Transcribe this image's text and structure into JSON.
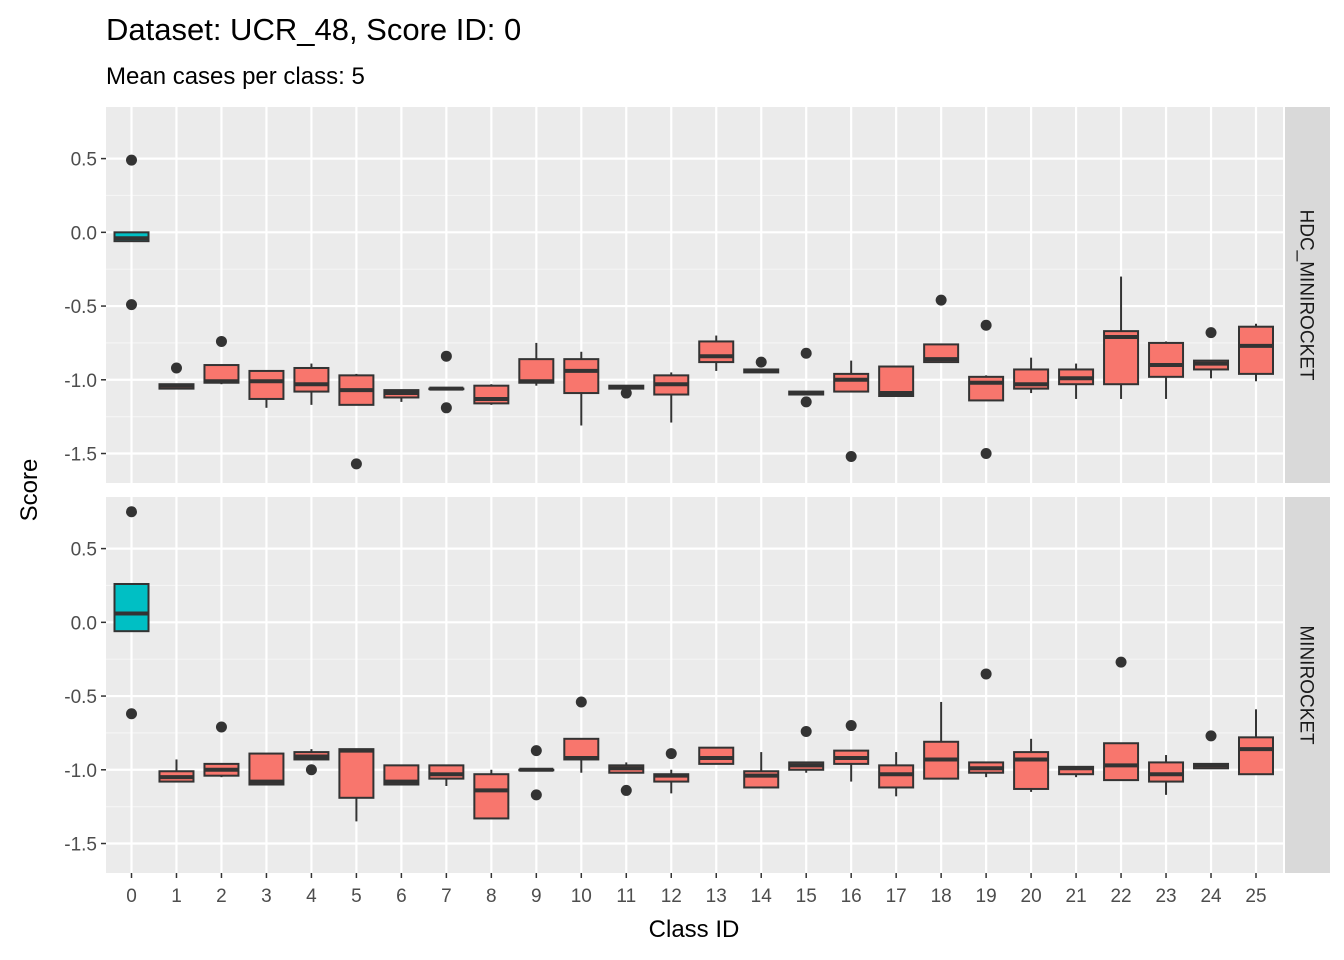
{
  "chart_data": {
    "type": "boxplot",
    "title": "Dataset: UCR_48, Score ID: 0",
    "subtitle": "Mean cases per class: 5",
    "xlabel": "Class ID",
    "ylabel": "Score",
    "categories": [
      "0",
      "1",
      "2",
      "3",
      "4",
      "5",
      "6",
      "7",
      "8",
      "9",
      "10",
      "11",
      "12",
      "13",
      "14",
      "15",
      "16",
      "17",
      "18",
      "19",
      "20",
      "21",
      "22",
      "23",
      "24",
      "25"
    ],
    "yticks": [
      0.5,
      0.0,
      -0.5,
      -1.0,
      -1.5
    ],
    "ytick_labels": [
      "0.5",
      "0.0",
      "-0.5",
      "-1.0",
      "-1.5"
    ],
    "ylim": [
      -1.7,
      0.85
    ],
    "grid": true,
    "colors": {
      "highlight": "#00bfc4",
      "default": "#f8766d",
      "panel_bg": "#ebebeb",
      "strip_bg": "#d9d9d9",
      "box_line": "#333333"
    },
    "panels": [
      {
        "label": "HDC_MINIROCKET",
        "boxes": [
          {
            "lw": -0.06,
            "q1": -0.06,
            "med": -0.04,
            "q3": 0.0,
            "uw": 0.0,
            "outliers": [
              0.49,
              -0.49
            ],
            "highlight": true
          },
          {
            "lw": -1.06,
            "q1": -1.06,
            "med": -1.04,
            "q3": -1.03,
            "uw": -1.03,
            "outliers": [
              -0.92
            ]
          },
          {
            "lw": -1.03,
            "q1": -1.02,
            "med": -1.01,
            "q3": -0.9,
            "uw": -0.9,
            "outliers": [
              -0.74
            ]
          },
          {
            "lw": -1.19,
            "q1": -1.13,
            "med": -1.01,
            "q3": -0.94,
            "uw": -0.94,
            "outliers": []
          },
          {
            "lw": -1.17,
            "q1": -1.08,
            "med": -1.03,
            "q3": -0.92,
            "uw": -0.89,
            "outliers": []
          },
          {
            "lw": -1.17,
            "q1": -1.17,
            "med": -1.07,
            "q3": -0.97,
            "uw": -0.96,
            "outliers": [
              -1.57
            ]
          },
          {
            "lw": -1.15,
            "q1": -1.12,
            "med": -1.09,
            "q3": -1.07,
            "uw": -1.07,
            "outliers": []
          },
          {
            "lw": -1.06,
            "q1": -1.06,
            "med": -1.06,
            "q3": -1.06,
            "uw": -1.06,
            "outliers": [
              -0.84,
              -1.19
            ]
          },
          {
            "lw": -1.17,
            "q1": -1.16,
            "med": -1.13,
            "q3": -1.04,
            "uw": -1.03,
            "outliers": []
          },
          {
            "lw": -1.04,
            "q1": -1.02,
            "med": -1.01,
            "q3": -0.86,
            "uw": -0.75,
            "outliers": []
          },
          {
            "lw": -1.31,
            "q1": -1.09,
            "med": -0.94,
            "q3": -0.86,
            "uw": -0.81,
            "outliers": []
          },
          {
            "lw": -1.06,
            "q1": -1.06,
            "med": -1.05,
            "q3": -1.04,
            "uw": -1.04,
            "outliers": [
              -1.09
            ]
          },
          {
            "lw": -1.29,
            "q1": -1.1,
            "med": -1.03,
            "q3": -0.97,
            "uw": -0.95,
            "outliers": []
          },
          {
            "lw": -0.94,
            "q1": -0.88,
            "med": -0.84,
            "q3": -0.74,
            "uw": -0.7,
            "outliers": []
          },
          {
            "lw": -0.95,
            "q1": -0.95,
            "med": -0.94,
            "q3": -0.93,
            "uw": -0.93,
            "outliers": [
              -0.88
            ]
          },
          {
            "lw": -1.09,
            "q1": -1.1,
            "med": -1.09,
            "q3": -1.08,
            "uw": -1.08,
            "outliers": [
              -0.82,
              -1.15
            ]
          },
          {
            "lw": -1.08,
            "q1": -1.08,
            "med": -1.0,
            "q3": -0.96,
            "uw": -0.87,
            "outliers": [
              -1.52
            ]
          },
          {
            "lw": -1.11,
            "q1": -1.11,
            "med": -1.09,
            "q3": -0.91,
            "uw": -0.91,
            "outliers": []
          },
          {
            "lw": -0.88,
            "q1": -0.88,
            "med": -0.86,
            "q3": -0.76,
            "uw": -0.76,
            "outliers": [
              -0.46
            ]
          },
          {
            "lw": -1.14,
            "q1": -1.14,
            "med": -1.02,
            "q3": -0.98,
            "uw": -0.97,
            "outliers": [
              -0.63,
              -1.5
            ]
          },
          {
            "lw": -1.09,
            "q1": -1.06,
            "med": -1.03,
            "q3": -0.93,
            "uw": -0.85,
            "outliers": []
          },
          {
            "lw": -1.13,
            "q1": -1.03,
            "med": -0.99,
            "q3": -0.93,
            "uw": -0.89,
            "outliers": []
          },
          {
            "lw": -1.13,
            "q1": -1.03,
            "med": -0.71,
            "q3": -0.67,
            "uw": -0.3,
            "outliers": []
          },
          {
            "lw": -1.13,
            "q1": -0.98,
            "med": -0.9,
            "q3": -0.75,
            "uw": -0.74,
            "outliers": []
          },
          {
            "lw": -0.99,
            "q1": -0.93,
            "med": -0.89,
            "q3": -0.87,
            "uw": -0.87,
            "outliers": [
              -0.68
            ]
          },
          {
            "lw": -1.01,
            "q1": -0.96,
            "med": -0.77,
            "q3": -0.64,
            "uw": -0.62,
            "outliers": []
          }
        ]
      },
      {
        "label": "MINIROCKET",
        "boxes": [
          {
            "lw": -0.06,
            "q1": -0.06,
            "med": 0.06,
            "q3": 0.26,
            "uw": 0.26,
            "outliers": [
              0.75,
              -0.62
            ],
            "highlight": true
          },
          {
            "lw": -1.08,
            "q1": -1.08,
            "med": -1.05,
            "q3": -1.01,
            "uw": -0.93,
            "outliers": []
          },
          {
            "lw": -1.05,
            "q1": -1.04,
            "med": -1.0,
            "q3": -0.96,
            "uw": -0.96,
            "outliers": [
              -0.71
            ]
          },
          {
            "lw": -1.1,
            "q1": -1.1,
            "med": -1.08,
            "q3": -0.89,
            "uw": -0.89,
            "outliers": []
          },
          {
            "lw": -0.93,
            "q1": -0.93,
            "med": -0.91,
            "q3": -0.88,
            "uw": -0.86,
            "outliers": [
              -1.0
            ]
          },
          {
            "lw": -1.35,
            "q1": -1.19,
            "med": -0.87,
            "q3": -0.86,
            "uw": -0.86,
            "outliers": []
          },
          {
            "lw": -1.1,
            "q1": -1.1,
            "med": -1.08,
            "q3": -0.97,
            "uw": -0.97,
            "outliers": []
          },
          {
            "lw": -1.11,
            "q1": -1.06,
            "med": -1.03,
            "q3": -0.97,
            "uw": -0.97,
            "outliers": []
          },
          {
            "lw": -1.33,
            "q1": -1.33,
            "med": -1.14,
            "q3": -1.03,
            "uw": -1.0,
            "outliers": []
          },
          {
            "lw": -1.0,
            "q1": -1.0,
            "med": -1.0,
            "q3": -1.0,
            "uw": -1.0,
            "outliers": [
              -0.87,
              -1.17
            ]
          },
          {
            "lw": -1.02,
            "q1": -0.93,
            "med": -0.92,
            "q3": -0.79,
            "uw": -0.79,
            "outliers": [
              -0.54
            ]
          },
          {
            "lw": -1.02,
            "q1": -1.02,
            "med": -0.99,
            "q3": -0.97,
            "uw": -0.95,
            "outliers": [
              -1.14
            ]
          },
          {
            "lw": -1.16,
            "q1": -1.08,
            "med": -1.04,
            "q3": -1.03,
            "uw": -1.0,
            "outliers": [
              -0.89
            ]
          },
          {
            "lw": -0.96,
            "q1": -0.96,
            "med": -0.92,
            "q3": -0.85,
            "uw": -0.85,
            "outliers": []
          },
          {
            "lw": -1.12,
            "q1": -1.12,
            "med": -1.04,
            "q3": -1.01,
            "uw": -0.88,
            "outliers": []
          },
          {
            "lw": -1.02,
            "q1": -1.0,
            "med": -0.97,
            "q3": -0.95,
            "uw": -0.95,
            "outliers": [
              -0.74
            ]
          },
          {
            "lw": -1.08,
            "q1": -0.96,
            "med": -0.92,
            "q3": -0.87,
            "uw": -0.87,
            "outliers": [
              -0.7
            ]
          },
          {
            "lw": -1.18,
            "q1": -1.12,
            "med": -1.03,
            "q3": -0.97,
            "uw": -0.88,
            "outliers": []
          },
          {
            "lw": -1.06,
            "q1": -1.06,
            "med": -0.93,
            "q3": -0.81,
            "uw": -0.54,
            "outliers": []
          },
          {
            "lw": -1.05,
            "q1": -1.02,
            "med": -0.99,
            "q3": -0.95,
            "uw": -0.95,
            "outliers": [
              -0.35
            ]
          },
          {
            "lw": -1.15,
            "q1": -1.13,
            "med": -0.93,
            "q3": -0.88,
            "uw": -0.79,
            "outliers": []
          },
          {
            "lw": -1.05,
            "q1": -1.03,
            "med": -0.99,
            "q3": -0.98,
            "uw": -0.98,
            "outliers": []
          },
          {
            "lw": -1.07,
            "q1": -1.07,
            "med": -0.97,
            "q3": -0.82,
            "uw": -0.82,
            "outliers": [
              -0.27
            ]
          },
          {
            "lw": -1.17,
            "q1": -1.08,
            "med": -1.03,
            "q3": -0.95,
            "uw": -0.9,
            "outliers": []
          },
          {
            "lw": -0.99,
            "q1": -0.99,
            "med": -0.97,
            "q3": -0.96,
            "uw": -0.96,
            "outliers": [
              -0.77
            ]
          },
          {
            "lw": -1.03,
            "q1": -1.03,
            "med": -0.86,
            "q3": -0.78,
            "uw": -0.59,
            "outliers": []
          }
        ]
      }
    ]
  }
}
